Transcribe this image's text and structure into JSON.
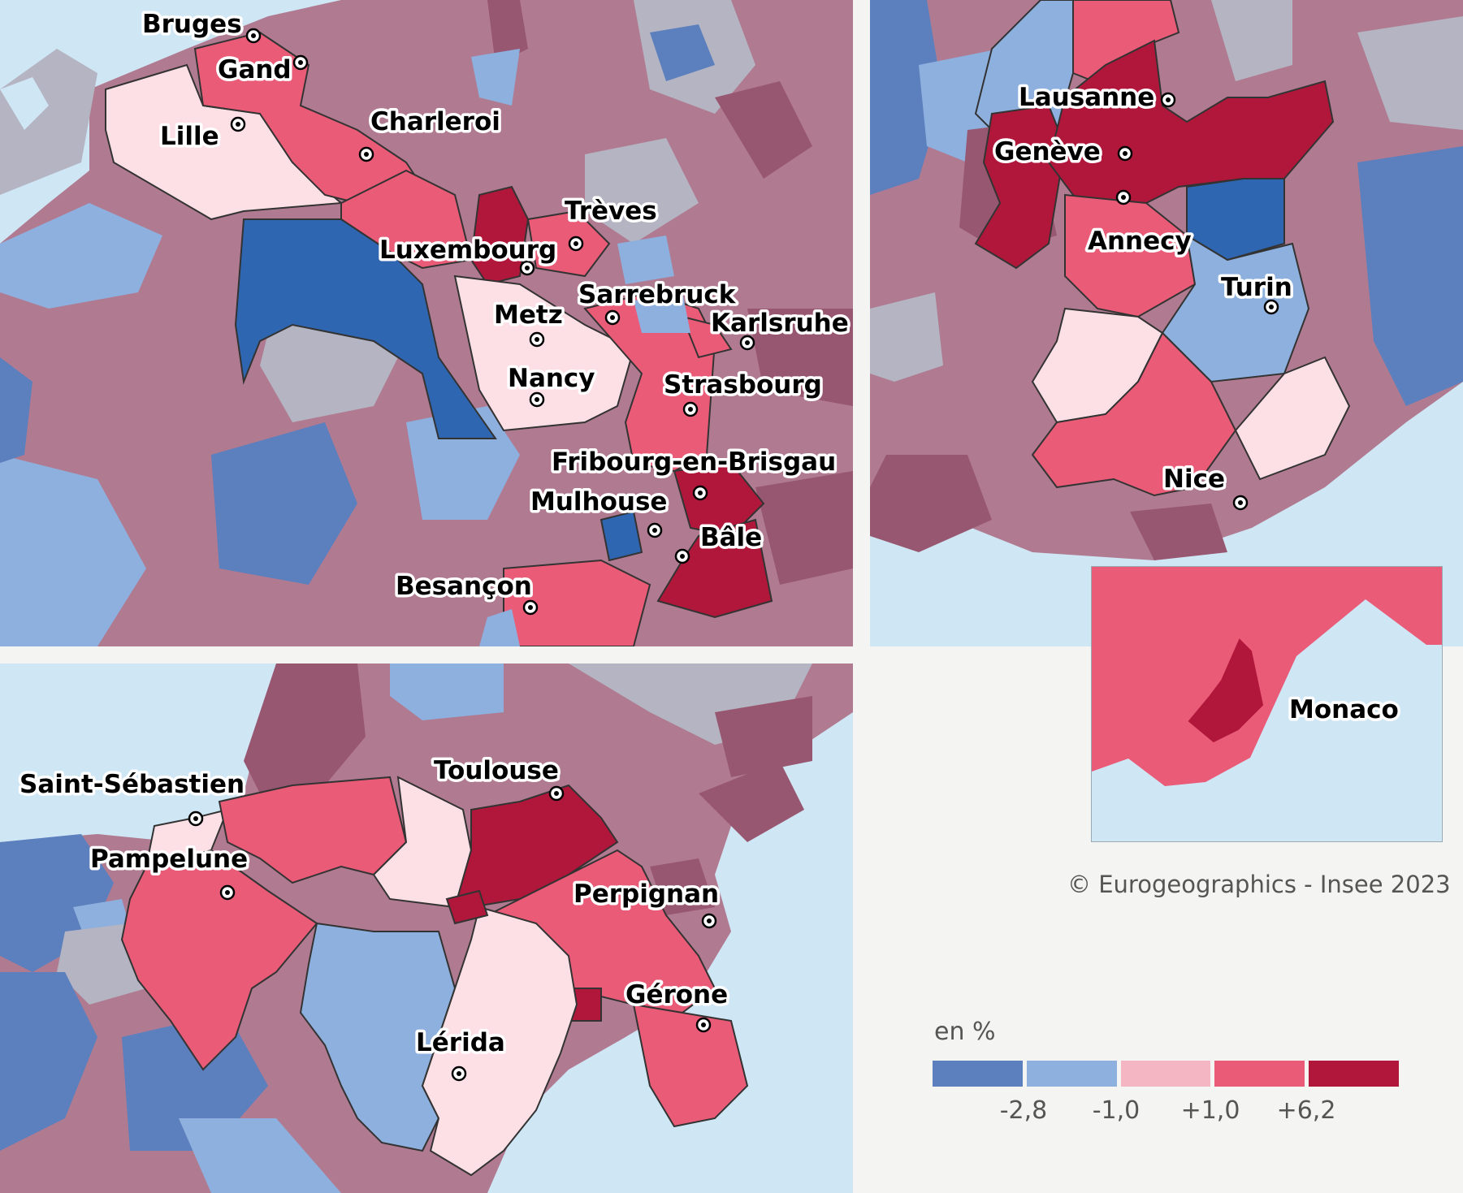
{
  "colors": {
    "sea": "#cfe6f5",
    "class1": "#5c7fbe",
    "class2": "#8eb0de",
    "class3": "#f4b6c2",
    "class4": "#ea5b78",
    "class5": "#b0173a",
    "highlight_blue": "#2e66b1",
    "highlight_pink_light": "#fde0e5",
    "bg_mauve": "#b07b91",
    "bg_grey": "#b4b4c2",
    "bg_dark": "#985770"
  },
  "panels": {
    "northeast": {
      "cities": [
        {
          "name": "Bruges"
        },
        {
          "name": "Gand"
        },
        {
          "name": "Lille"
        },
        {
          "name": "Charleroi"
        },
        {
          "name": "Trèves"
        },
        {
          "name": "Luxembourg"
        },
        {
          "name": "Sarrebruck"
        },
        {
          "name": "Metz"
        },
        {
          "name": "Karlsruhe"
        },
        {
          "name": "Nancy"
        },
        {
          "name": "Strasbourg"
        },
        {
          "name": "Fribourg-en-Brisgau"
        },
        {
          "name": "Mulhouse"
        },
        {
          "name": "Bâle"
        },
        {
          "name": "Besançon"
        }
      ]
    },
    "alps": {
      "cities": [
        {
          "name": "Lausanne"
        },
        {
          "name": "Genève"
        },
        {
          "name": "Annecy"
        },
        {
          "name": "Turin"
        },
        {
          "name": "Nice"
        }
      ]
    },
    "pyrenees": {
      "cities": [
        {
          "name": "Saint-Sébastien"
        },
        {
          "name": "Pampelune"
        },
        {
          "name": "Toulouse"
        },
        {
          "name": "Perpignan"
        },
        {
          "name": "Gérone"
        },
        {
          "name": "Lérida"
        }
      ]
    },
    "monaco": {
      "cities": [
        {
          "name": "Monaco"
        }
      ]
    }
  },
  "credit": "© Eurogeographics - Insee 2023",
  "legend": {
    "title": "en %",
    "thresholds": [
      "-2,8",
      "-1,0",
      "+1,0",
      "+6,2"
    ]
  }
}
